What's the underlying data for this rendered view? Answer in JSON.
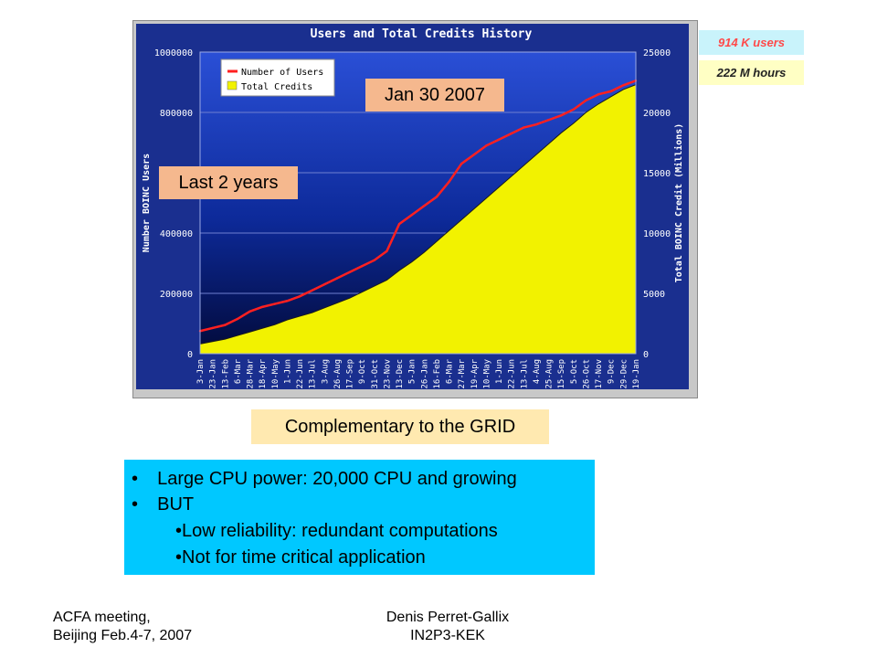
{
  "badges": {
    "users": "914 K users",
    "hours": "222 M hours"
  },
  "callouts": {
    "date": "Jan 30  2007",
    "period": "Last 2 years"
  },
  "subtitle": "Complementary to the GRID",
  "bullets": [
    {
      "marker": "•",
      "text": "Large CPU power: 20,000 CPU and growing"
    },
    {
      "marker": "•",
      "text": "BUT"
    },
    {
      "marker": "",
      "text": "•Low reliability: redundant computations"
    },
    {
      "marker": "",
      "text": "•Not for time critical application"
    }
  ],
  "footer": {
    "left_line1": "ACFA meeting,",
    "left_line2": "Beijing Feb.4-7, 2007",
    "center_line1": "Denis Perret-Gallix",
    "center_line2": "IN2P3-KEK"
  },
  "chart_data": {
    "type": "line",
    "title": "Users and Total Credits History",
    "ylabel": "Number   BOINC Users",
    "y2label": "Total   BOINC Credit (Millions)",
    "ylim": [
      0,
      1000000
    ],
    "y2lim": [
      0,
      25000
    ],
    "yticks": [
      "0",
      "200000",
      "400000",
      "600000",
      "800000",
      "1000000"
    ],
    "y2ticks": [
      "0",
      "5000",
      "10000",
      "15000",
      "20000",
      "25000"
    ],
    "grid": true,
    "legend_position": "top-left",
    "categories": [
      "3-Jan",
      "23-Jan",
      "13-Feb",
      "6-Mar",
      "28-Mar",
      "18-Apr",
      "10-May",
      "1-Jun",
      "22-Jun",
      "13-Jul",
      "3-Aug",
      "26-Aug",
      "17-Sep",
      "9-Oct",
      "31-Oct",
      "23-Nov",
      "13-Dec",
      "5-Jan",
      "26-Jan",
      "16-Feb",
      "6-Mar",
      "27-Mar",
      "19-Apr",
      "10-May",
      "1-Jun",
      "22-Jun",
      "13-Jul",
      "4-Aug",
      "25-Aug",
      "15-Sep",
      "5-Oct",
      "26-Oct",
      "17-Nov",
      "9-Dec",
      "29-Dec",
      "19-Jan"
    ],
    "series": [
      {
        "name": "Number of Users",
        "color": "#ff2020",
        "axis": "left",
        "values": [
          75000,
          85000,
          95000,
          115000,
          140000,
          155000,
          165000,
          175000,
          190000,
          210000,
          230000,
          250000,
          270000,
          290000,
          310000,
          340000,
          430000,
          460000,
          490000,
          520000,
          570000,
          630000,
          660000,
          690000,
          710000,
          730000,
          750000,
          760000,
          775000,
          790000,
          810000,
          840000,
          860000,
          870000,
          890000,
          905000
        ]
      },
      {
        "name": "Total Credits",
        "color": "#f2f200",
        "axis": "right",
        "values": [
          800,
          1000,
          1200,
          1500,
          1800,
          2100,
          2400,
          2800,
          3100,
          3400,
          3800,
          4200,
          4600,
          5100,
          5600,
          6100,
          6900,
          7600,
          8400,
          9300,
          10200,
          11100,
          12000,
          12900,
          13800,
          14700,
          15600,
          16500,
          17400,
          18300,
          19100,
          20000,
          20700,
          21300,
          21900,
          22300
        ]
      }
    ]
  }
}
